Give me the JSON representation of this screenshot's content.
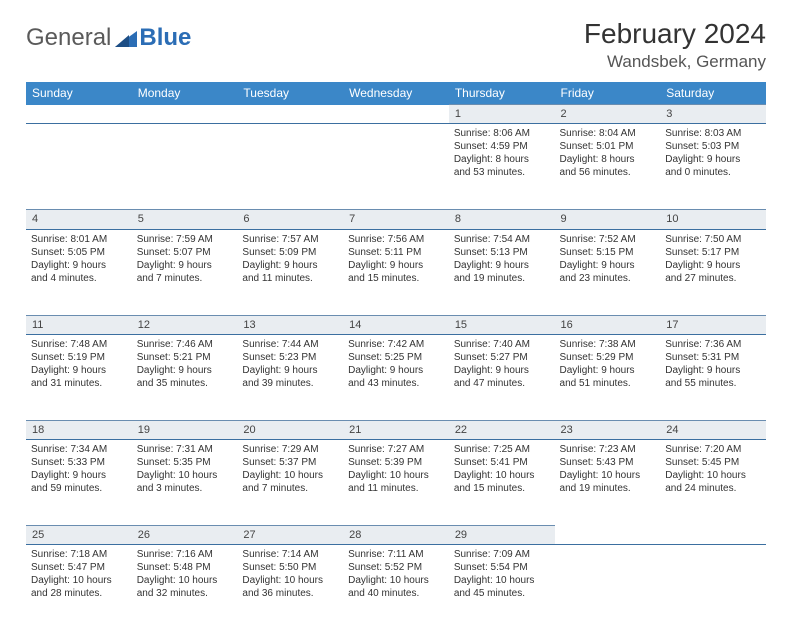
{
  "logo": {
    "word1": "General",
    "word2": "Blue"
  },
  "title": "February 2024",
  "location": "Wandsbek, Germany",
  "colors": {
    "header_bg": "#3b87c8",
    "header_text": "#ffffff",
    "daynum_bg": "#e9edf1",
    "row_border": "#3b6fa0",
    "logo_blue": "#2b6db5"
  },
  "weekdays": [
    "Sunday",
    "Monday",
    "Tuesday",
    "Wednesday",
    "Thursday",
    "Friday",
    "Saturday"
  ],
  "weeks": [
    [
      null,
      null,
      null,
      null,
      {
        "n": "1",
        "sunrise": "8:06 AM",
        "sunset": "4:59 PM",
        "dl1": "Daylight: 8 hours",
        "dl2": "and 53 minutes."
      },
      {
        "n": "2",
        "sunrise": "8:04 AM",
        "sunset": "5:01 PM",
        "dl1": "Daylight: 8 hours",
        "dl2": "and 56 minutes."
      },
      {
        "n": "3",
        "sunrise": "8:03 AM",
        "sunset": "5:03 PM",
        "dl1": "Daylight: 9 hours",
        "dl2": "and 0 minutes."
      }
    ],
    [
      {
        "n": "4",
        "sunrise": "8:01 AM",
        "sunset": "5:05 PM",
        "dl1": "Daylight: 9 hours",
        "dl2": "and 4 minutes."
      },
      {
        "n": "5",
        "sunrise": "7:59 AM",
        "sunset": "5:07 PM",
        "dl1": "Daylight: 9 hours",
        "dl2": "and 7 minutes."
      },
      {
        "n": "6",
        "sunrise": "7:57 AM",
        "sunset": "5:09 PM",
        "dl1": "Daylight: 9 hours",
        "dl2": "and 11 minutes."
      },
      {
        "n": "7",
        "sunrise": "7:56 AM",
        "sunset": "5:11 PM",
        "dl1": "Daylight: 9 hours",
        "dl2": "and 15 minutes."
      },
      {
        "n": "8",
        "sunrise": "7:54 AM",
        "sunset": "5:13 PM",
        "dl1": "Daylight: 9 hours",
        "dl2": "and 19 minutes."
      },
      {
        "n": "9",
        "sunrise": "7:52 AM",
        "sunset": "5:15 PM",
        "dl1": "Daylight: 9 hours",
        "dl2": "and 23 minutes."
      },
      {
        "n": "10",
        "sunrise": "7:50 AM",
        "sunset": "5:17 PM",
        "dl1": "Daylight: 9 hours",
        "dl2": "and 27 minutes."
      }
    ],
    [
      {
        "n": "11",
        "sunrise": "7:48 AM",
        "sunset": "5:19 PM",
        "dl1": "Daylight: 9 hours",
        "dl2": "and 31 minutes."
      },
      {
        "n": "12",
        "sunrise": "7:46 AM",
        "sunset": "5:21 PM",
        "dl1": "Daylight: 9 hours",
        "dl2": "and 35 minutes."
      },
      {
        "n": "13",
        "sunrise": "7:44 AM",
        "sunset": "5:23 PM",
        "dl1": "Daylight: 9 hours",
        "dl2": "and 39 minutes."
      },
      {
        "n": "14",
        "sunrise": "7:42 AM",
        "sunset": "5:25 PM",
        "dl1": "Daylight: 9 hours",
        "dl2": "and 43 minutes."
      },
      {
        "n": "15",
        "sunrise": "7:40 AM",
        "sunset": "5:27 PM",
        "dl1": "Daylight: 9 hours",
        "dl2": "and 47 minutes."
      },
      {
        "n": "16",
        "sunrise": "7:38 AM",
        "sunset": "5:29 PM",
        "dl1": "Daylight: 9 hours",
        "dl2": "and 51 minutes."
      },
      {
        "n": "17",
        "sunrise": "7:36 AM",
        "sunset": "5:31 PM",
        "dl1": "Daylight: 9 hours",
        "dl2": "and 55 minutes."
      }
    ],
    [
      {
        "n": "18",
        "sunrise": "7:34 AM",
        "sunset": "5:33 PM",
        "dl1": "Daylight: 9 hours",
        "dl2": "and 59 minutes."
      },
      {
        "n": "19",
        "sunrise": "7:31 AM",
        "sunset": "5:35 PM",
        "dl1": "Daylight: 10 hours",
        "dl2": "and 3 minutes."
      },
      {
        "n": "20",
        "sunrise": "7:29 AM",
        "sunset": "5:37 PM",
        "dl1": "Daylight: 10 hours",
        "dl2": "and 7 minutes."
      },
      {
        "n": "21",
        "sunrise": "7:27 AM",
        "sunset": "5:39 PM",
        "dl1": "Daylight: 10 hours",
        "dl2": "and 11 minutes."
      },
      {
        "n": "22",
        "sunrise": "7:25 AM",
        "sunset": "5:41 PM",
        "dl1": "Daylight: 10 hours",
        "dl2": "and 15 minutes."
      },
      {
        "n": "23",
        "sunrise": "7:23 AM",
        "sunset": "5:43 PM",
        "dl1": "Daylight: 10 hours",
        "dl2": "and 19 minutes."
      },
      {
        "n": "24",
        "sunrise": "7:20 AM",
        "sunset": "5:45 PM",
        "dl1": "Daylight: 10 hours",
        "dl2": "and 24 minutes."
      }
    ],
    [
      {
        "n": "25",
        "sunrise": "7:18 AM",
        "sunset": "5:47 PM",
        "dl1": "Daylight: 10 hours",
        "dl2": "and 28 minutes."
      },
      {
        "n": "26",
        "sunrise": "7:16 AM",
        "sunset": "5:48 PM",
        "dl1": "Daylight: 10 hours",
        "dl2": "and 32 minutes."
      },
      {
        "n": "27",
        "sunrise": "7:14 AM",
        "sunset": "5:50 PM",
        "dl1": "Daylight: 10 hours",
        "dl2": "and 36 minutes."
      },
      {
        "n": "28",
        "sunrise": "7:11 AM",
        "sunset": "5:52 PM",
        "dl1": "Daylight: 10 hours",
        "dl2": "and 40 minutes."
      },
      {
        "n": "29",
        "sunrise": "7:09 AM",
        "sunset": "5:54 PM",
        "dl1": "Daylight: 10 hours",
        "dl2": "and 45 minutes."
      },
      null,
      null
    ]
  ]
}
